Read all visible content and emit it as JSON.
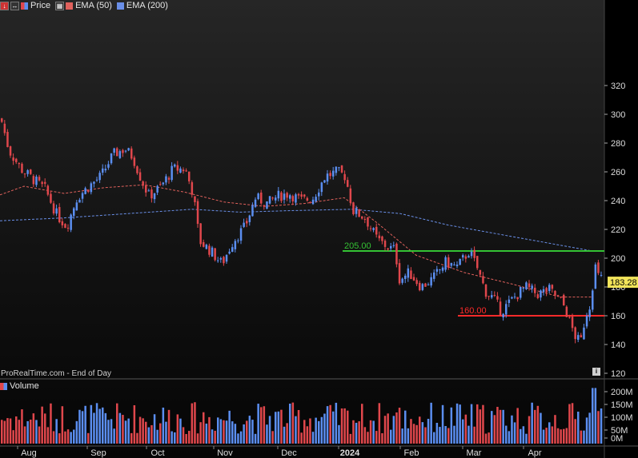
{
  "legend": {
    "price_label": "Price",
    "ema50_label": "EMA (50)",
    "ema200_label": "EMA (200)",
    "volume_label": "Volume"
  },
  "watermark": "ProRealTime.com - End of Day",
  "colors": {
    "up": "#5b8ef0",
    "down": "#e0474c",
    "ema50": "#e0615c",
    "ema200": "#6a8fe8",
    "support": "#ff2a2a",
    "resistance": "#34c234"
  },
  "chart_data": {
    "type": "candlestick",
    "price_axis": {
      "ticks": [
        120,
        140,
        160,
        180,
        200,
        220,
        240,
        260,
        280,
        300,
        320
      ],
      "range": [
        118,
        322
      ]
    },
    "volume_axis": {
      "ticks": [
        "200M",
        "150M",
        "100M",
        "50M",
        "0M"
      ]
    },
    "x_axis": {
      "labels": [
        "Aug",
        "Sep",
        "Oct",
        "Nov",
        "Dec",
        "2024",
        "Feb",
        "Mar",
        "Apr"
      ]
    },
    "last_price": "183.28",
    "lines": [
      {
        "label": "205.00",
        "value": 205,
        "kind": "resistance"
      },
      {
        "label": "160.00",
        "value": 160,
        "kind": "support"
      }
    ],
    "path": [
      [
        0,
        297
      ],
      [
        10,
        275
      ],
      [
        25,
        262
      ],
      [
        40,
        255
      ],
      [
        55,
        248
      ],
      [
        70,
        230
      ],
      [
        82,
        222
      ],
      [
        95,
        242
      ],
      [
        110,
        250
      ],
      [
        125,
        257
      ],
      [
        140,
        272
      ],
      [
        155,
        276
      ],
      [
        165,
        270
      ],
      [
        175,
        255
      ],
      [
        185,
        243
      ],
      [
        200,
        250
      ],
      [
        215,
        262
      ],
      [
        230,
        262
      ],
      [
        240,
        245
      ],
      [
        248,
        212
      ],
      [
        262,
        205
      ],
      [
        276,
        196
      ],
      [
        290,
        212
      ],
      [
        305,
        222
      ],
      [
        318,
        242
      ],
      [
        333,
        238
      ],
      [
        345,
        243
      ],
      [
        360,
        245
      ],
      [
        375,
        240
      ],
      [
        390,
        242
      ],
      [
        405,
        257
      ],
      [
        420,
        260
      ],
      [
        430,
        257
      ],
      [
        440,
        233
      ],
      [
        455,
        228
      ],
      [
        470,
        213
      ],
      [
        485,
        207
      ],
      [
        492,
        206
      ],
      [
        498,
        185
      ],
      [
        510,
        190
      ],
      [
        525,
        180
      ],
      [
        540,
        186
      ],
      [
        555,
        197
      ],
      [
        570,
        194
      ],
      [
        585,
        205
      ],
      [
        595,
        193
      ],
      [
        605,
        177
      ],
      [
        615,
        172
      ],
      [
        625,
        163
      ],
      [
        640,
        172
      ],
      [
        655,
        180
      ],
      [
        670,
        175
      ],
      [
        685,
        178
      ],
      [
        700,
        170
      ],
      [
        705,
        165
      ],
      [
        710,
        156
      ],
      [
        718,
        145
      ],
      [
        724,
        141
      ],
      [
        730,
        160
      ],
      [
        736,
        168
      ],
      [
        742,
        195
      ],
      [
        747,
        186
      ]
    ],
    "ema50": [
      [
        0,
        244
      ],
      [
        30,
        250
      ],
      [
        80,
        245
      ],
      [
        130,
        249
      ],
      [
        180,
        251
      ],
      [
        230,
        246
      ],
      [
        280,
        239
      ],
      [
        330,
        236
      ],
      [
        380,
        238
      ],
      [
        430,
        242
      ],
      [
        470,
        225
      ],
      [
        520,
        202
      ],
      [
        580,
        190
      ],
      [
        640,
        182
      ],
      [
        700,
        173
      ],
      [
        740,
        173
      ]
    ],
    "ema200": [
      [
        0,
        226
      ],
      [
        80,
        228
      ],
      [
        160,
        231
      ],
      [
        240,
        234
      ],
      [
        300,
        232
      ],
      [
        360,
        233
      ],
      [
        440,
        234
      ],
      [
        500,
        231
      ],
      [
        560,
        223
      ],
      [
        620,
        217
      ],
      [
        680,
        211
      ],
      [
        740,
        205
      ]
    ],
    "volume_highlights": [
      [
        494,
        130
      ],
      [
        741,
        232
      ]
    ]
  }
}
